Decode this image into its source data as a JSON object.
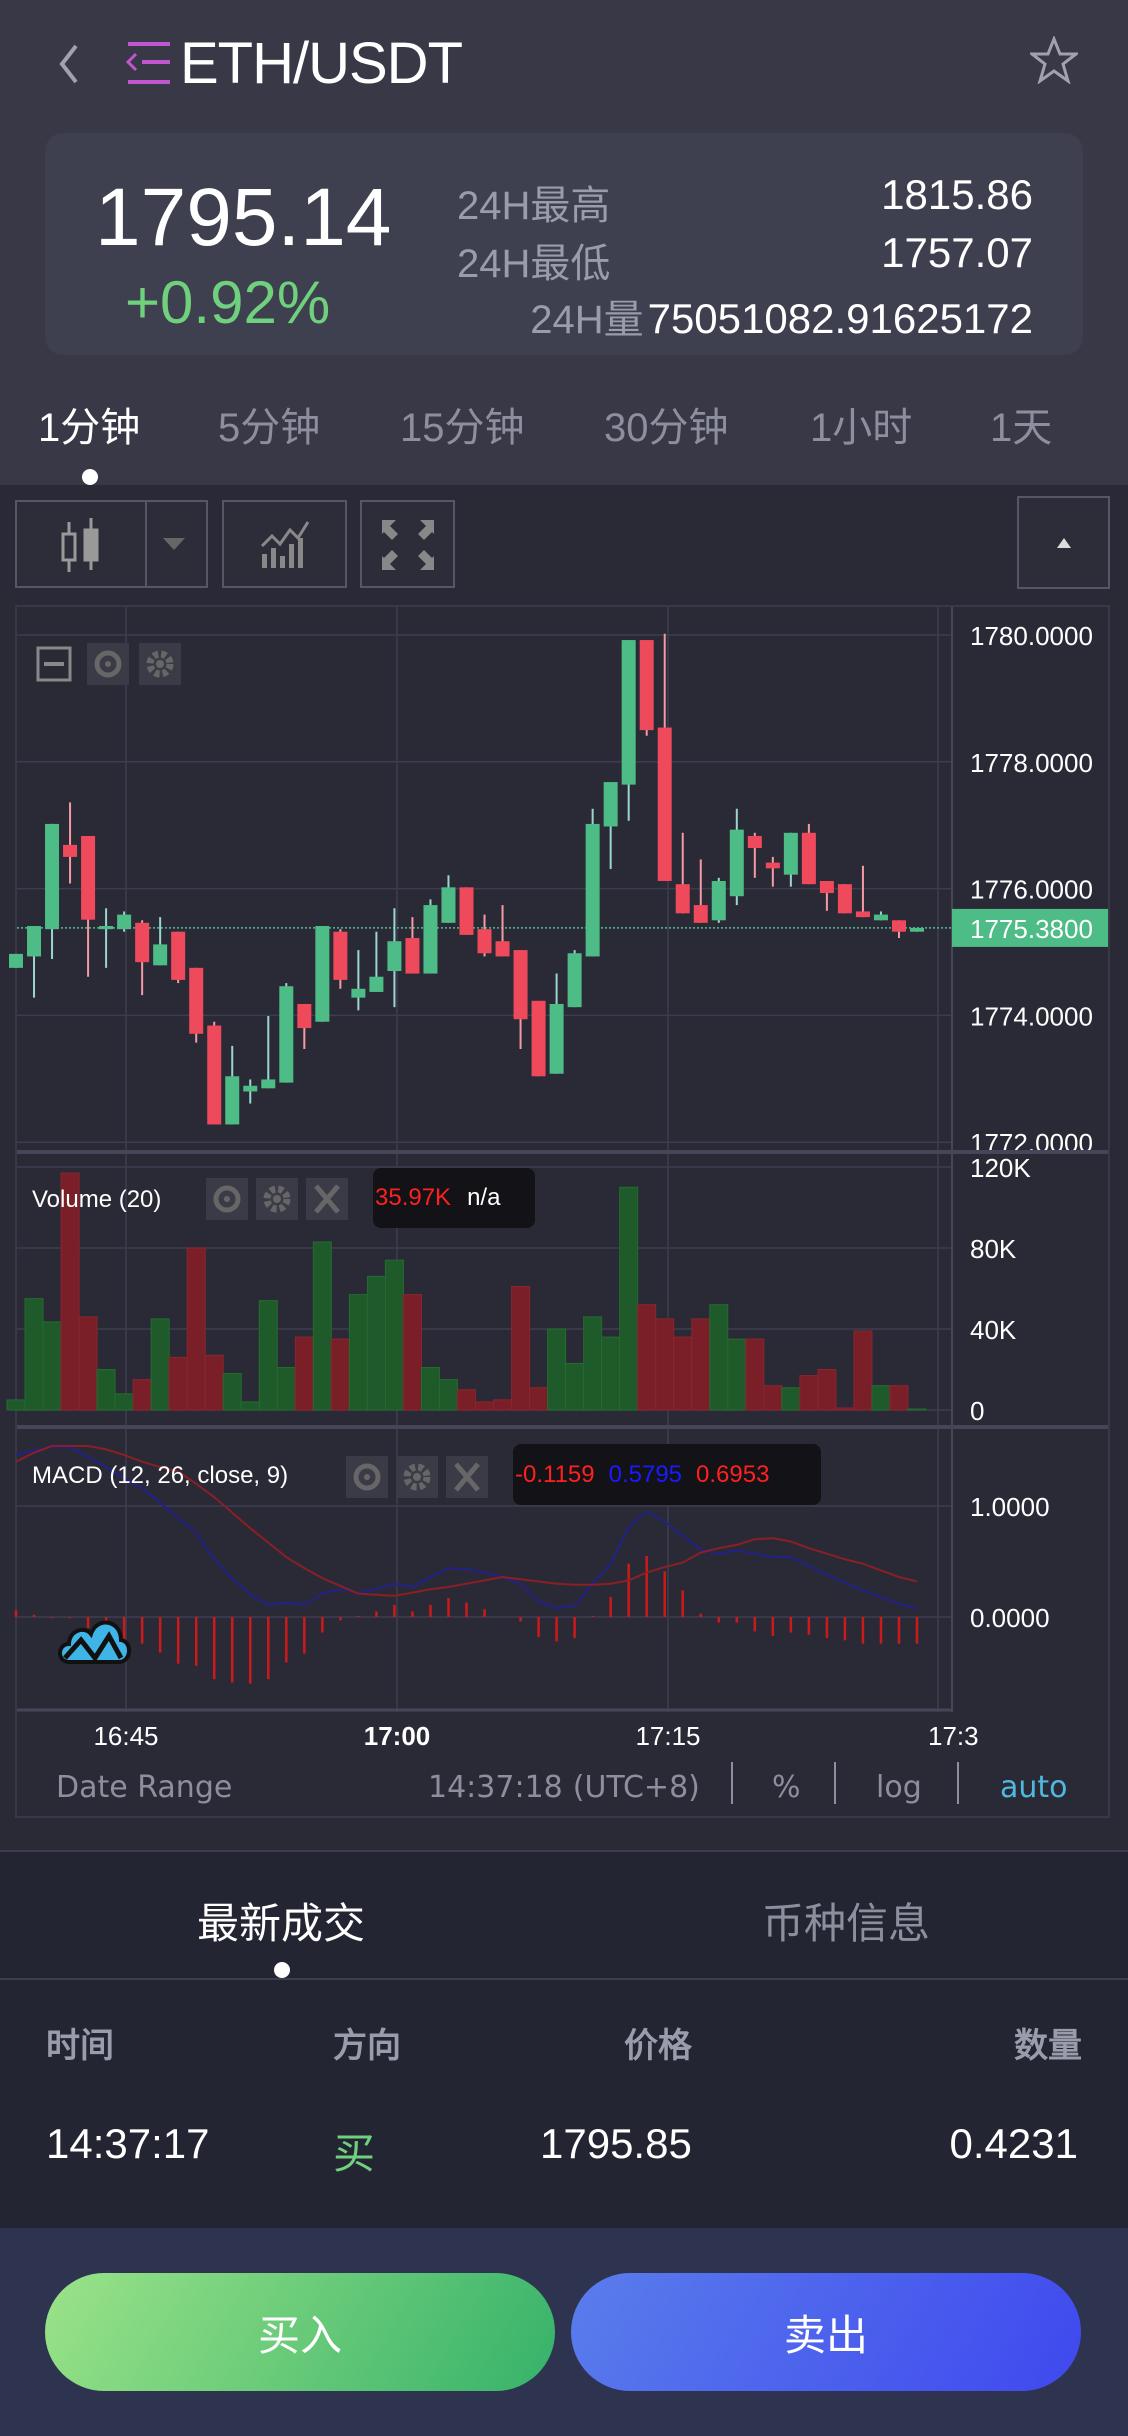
{
  "header": {
    "back_icon": "chevron-left-icon",
    "logo_icon": "indent-menu-icon",
    "title": "ETH/USDT",
    "favorite_icon": "star-outline-icon"
  },
  "ticker": {
    "price": "1795.14",
    "change": "+0.92%",
    "high_label": "24H最高",
    "high": "1815.86",
    "low_label": "24H最低",
    "low": "1757.07",
    "volume_label": "24H量",
    "volume": "75051082.91625172"
  },
  "intervals": [
    {
      "label": "1分钟",
      "active": true
    },
    {
      "label": "5分钟"
    },
    {
      "label": "15分钟"
    },
    {
      "label": "30分钟"
    },
    {
      "label": "1小时"
    },
    {
      "label": "1天"
    }
  ],
  "toolbar": {
    "chart_type_icon": "candlestick-icon",
    "dropdown_icon": "caret-down-icon",
    "indicators_icon": "indicators-chart-icon",
    "fullscreen_icon": "fullscreen-icon",
    "collapse_icon": "caret-up-icon"
  },
  "colors": {
    "up": "#4ebc86",
    "down": "#ee4a5b",
    "accent": "#4fb8e0",
    "buy": "#6fd07e"
  },
  "chart_data": {
    "type": "candlestick",
    "price_ticks": [
      "1780.0000",
      "1778.0000",
      "1776.0000",
      "1774.0000",
      "1772.0000"
    ],
    "price_tick_values": [
      1780,
      1778,
      1776,
      1774,
      1772
    ],
    "last_price": 1775.38,
    "last_price_label": "1775.3800",
    "x_ticks": [
      "16:45",
      "17:00",
      "17:15",
      "17:3"
    ],
    "candles": [
      [
        1774.75,
        1774.97,
        1774.75,
        1774.97
      ],
      [
        1774.93,
        1775.41,
        1774.28,
        1775.41
      ],
      [
        1775.36,
        1777.02,
        1774.89,
        1777.02
      ],
      [
        1776.69,
        1777.36,
        1776.08,
        1776.5
      ],
      [
        1776.83,
        1776.83,
        1774.61,
        1775.51
      ],
      [
        1775.36,
        1775.69,
        1774.75,
        1775.41
      ],
      [
        1775.36,
        1775.64,
        1775.32,
        1775.59
      ],
      [
        1775.46,
        1775.5,
        1774.32,
        1774.84
      ],
      [
        1774.79,
        1775.55,
        1774.79,
        1775.12
      ],
      [
        1775.32,
        1775.32,
        1774.51,
        1774.56
      ],
      [
        1774.75,
        1774.75,
        1773.57,
        1773.71
      ],
      [
        1773.84,
        1773.9,
        1772.28,
        1772.28
      ],
      [
        1772.28,
        1773.52,
        1772.28,
        1773.04
      ],
      [
        1772.8,
        1772.99,
        1772.61,
        1772.89
      ],
      [
        1772.85,
        1773.99,
        1772.85,
        1772.99
      ],
      [
        1772.94,
        1774.51,
        1772.94,
        1774.46
      ],
      [
        1774.18,
        1774.18,
        1773.47,
        1773.8
      ],
      [
        1773.9,
        1775.41,
        1773.9,
        1775.41
      ],
      [
        1775.32,
        1775.36,
        1774.42,
        1774.56
      ],
      [
        1774.28,
        1775.03,
        1774.08,
        1774.42
      ],
      [
        1774.37,
        1775.32,
        1774.37,
        1774.61
      ],
      [
        1774.7,
        1775.69,
        1774.13,
        1775.17
      ],
      [
        1775.22,
        1775.55,
        1774.66,
        1774.66
      ],
      [
        1774.66,
        1775.83,
        1774.66,
        1775.74
      ],
      [
        1775.46,
        1776.21,
        1775.46,
        1776.02
      ],
      [
        1776.02,
        1776.02,
        1775.27,
        1775.27
      ],
      [
        1775.36,
        1775.59,
        1774.93,
        1774.98
      ],
      [
        1775.17,
        1775.74,
        1774.93,
        1774.93
      ],
      [
        1775.03,
        1775.03,
        1773.47,
        1773.94
      ],
      [
        1774.23,
        1774.23,
        1773.04,
        1773.04
      ],
      [
        1773.08,
        1774.66,
        1773.08,
        1774.18
      ],
      [
        1774.13,
        1775.03,
        1774.13,
        1774.98
      ],
      [
        1774.93,
        1777.26,
        1774.93,
        1777.02
      ],
      [
        1776.98,
        1777.68,
        1776.31,
        1777.68
      ],
      [
        1777.64,
        1779.92,
        1777.07,
        1779.92
      ],
      [
        1779.92,
        1779.92,
        1778.41,
        1778.5
      ],
      [
        1778.54,
        1780.02,
        1776.12,
        1776.12
      ],
      [
        1776.07,
        1776.88,
        1775.61,
        1775.61
      ],
      [
        1775.74,
        1776.46,
        1775.46,
        1775.46
      ],
      [
        1775.5,
        1776.17,
        1775.46,
        1776.12
      ],
      [
        1775.88,
        1777.26,
        1775.74,
        1776.93
      ],
      [
        1776.83,
        1776.88,
        1776.17,
        1776.64
      ],
      [
        1776.41,
        1776.5,
        1776.03,
        1776.32
      ],
      [
        1776.22,
        1776.88,
        1776.03,
        1776.88
      ],
      [
        1776.88,
        1777.02,
        1776.07,
        1776.07
      ],
      [
        1776.12,
        1776.12,
        1775.65,
        1775.93
      ],
      [
        1776.07,
        1776.07,
        1775.61,
        1775.61
      ],
      [
        1775.64,
        1776.36,
        1775.55,
        1775.55
      ],
      [
        1775.5,
        1775.64,
        1775.5,
        1775.59
      ],
      [
        1775.5,
        1775.5,
        1775.22,
        1775.32
      ],
      [
        1775.32,
        1775.38,
        1775.32,
        1775.38
      ]
    ],
    "volume_k": [
      5,
      55,
      43.5,
      117,
      46,
      20,
      8,
      15,
      45,
      26,
      80,
      27,
      18,
      4,
      54,
      21,
      36,
      83,
      35,
      57,
      66,
      74,
      57,
      21,
      15,
      10,
      4,
      5,
      61,
      11,
      40,
      23,
      46,
      36,
      110,
      52,
      45,
      36,
      45,
      52,
      35,
      35,
      12,
      11,
      17,
      20,
      1,
      39,
      12,
      12,
      0.5
    ],
    "volume_ticks": [
      "120K",
      "80K",
      "40K",
      "0"
    ],
    "volume_tick_values": [
      120,
      80,
      40,
      0
    ],
    "volume_legend": "Volume (20)",
    "volume_value": "35.97K",
    "volume_ma": "n/a",
    "macd": {
      "legend": "MACD (12, 26, close, 9)",
      "values": [
        "-0.1159",
        "0.5795",
        "0.6953"
      ],
      "macd_line": [
        1.46,
        1.5,
        1.53,
        1.53,
        1.44,
        1.35,
        1.25,
        1.16,
        1.03,
        0.89,
        0.76,
        0.52,
        0.35,
        0.2,
        0.11,
        0.13,
        0.11,
        0.21,
        0.25,
        0.22,
        0.25,
        0.3,
        0.27,
        0.36,
        0.44,
        0.43,
        0.4,
        0.36,
        0.3,
        0.14,
        0.08,
        0.1,
        0.3,
        0.48,
        0.81,
        0.95,
        0.86,
        0.73,
        0.61,
        0.57,
        0.6,
        0.57,
        0.54,
        0.54,
        0.46,
        0.38,
        0.31,
        0.24,
        0.18,
        0.12,
        0.08
      ],
      "signal_line": [
        1.4,
        1.48,
        1.54,
        1.54,
        1.54,
        1.51,
        1.46,
        1.4,
        1.35,
        1.31,
        1.2,
        1.08,
        0.94,
        0.8,
        0.67,
        0.54,
        0.44,
        0.35,
        0.28,
        0.21,
        0.2,
        0.19,
        0.22,
        0.25,
        0.27,
        0.3,
        0.33,
        0.36,
        0.34,
        0.32,
        0.3,
        0.29,
        0.29,
        0.3,
        0.33,
        0.4,
        0.45,
        0.49,
        0.58,
        0.62,
        0.65,
        0.7,
        0.71,
        0.68,
        0.62,
        0.57,
        0.52,
        0.48,
        0.42,
        0.36,
        0.32
      ],
      "ticks": [
        "1.0000",
        "0.0000"
      ],
      "tick_values": [
        1,
        0
      ]
    }
  },
  "chart_footer": {
    "date_range": "Date Range",
    "time": "14:37:18",
    "timezone": "(UTC+8)",
    "percent": "%",
    "log": "log",
    "auto": "auto"
  },
  "trades": {
    "tabs": [
      {
        "label": "最新成交",
        "active": true
      },
      {
        "label": "币种信息"
      }
    ],
    "columns": [
      "时间",
      "方向",
      "价格",
      "数量"
    ],
    "rows": [
      {
        "time": "14:37:17",
        "side": "买",
        "price": "1795.85",
        "amount": "0.4231"
      }
    ]
  },
  "actions": {
    "buy": "买入",
    "sell": "卖出"
  }
}
